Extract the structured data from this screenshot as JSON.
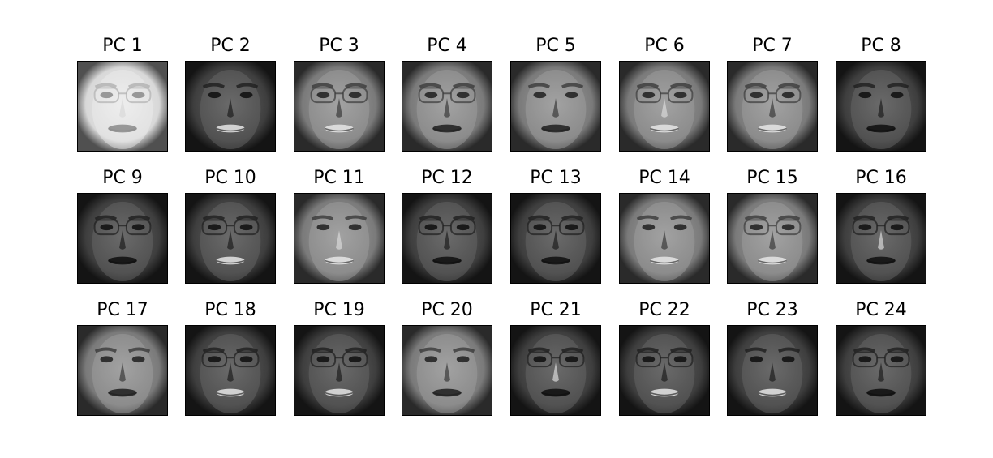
{
  "figure": {
    "panels": [
      {
        "title": "PC 1",
        "style": "light"
      },
      {
        "title": "PC 2",
        "style": "dark"
      },
      {
        "title": "PC 3",
        "style": "mid"
      },
      {
        "title": "PC 4",
        "style": "mid"
      },
      {
        "title": "PC 5",
        "style": "mid"
      },
      {
        "title": "PC 6",
        "style": "mid"
      },
      {
        "title": "PC 7",
        "style": "mid"
      },
      {
        "title": "PC 8",
        "style": "dark"
      },
      {
        "title": "PC 9",
        "style": "dark"
      },
      {
        "title": "PC 10",
        "style": "dark"
      },
      {
        "title": "PC 11",
        "style": "mid"
      },
      {
        "title": "PC 12",
        "style": "dark"
      },
      {
        "title": "PC 13",
        "style": "dark"
      },
      {
        "title": "PC 14",
        "style": "mid"
      },
      {
        "title": "PC 15",
        "style": "mid"
      },
      {
        "title": "PC 16",
        "style": "dark"
      },
      {
        "title": "PC 17",
        "style": "mid"
      },
      {
        "title": "PC 18",
        "style": "dark"
      },
      {
        "title": "PC 19",
        "style": "dark"
      },
      {
        "title": "PC 20",
        "style": "mid"
      },
      {
        "title": "PC 21",
        "style": "dark"
      },
      {
        "title": "PC 22",
        "style": "dark"
      },
      {
        "title": "PC 23",
        "style": "dark"
      },
      {
        "title": "PC 24",
        "style": "dark"
      }
    ]
  }
}
